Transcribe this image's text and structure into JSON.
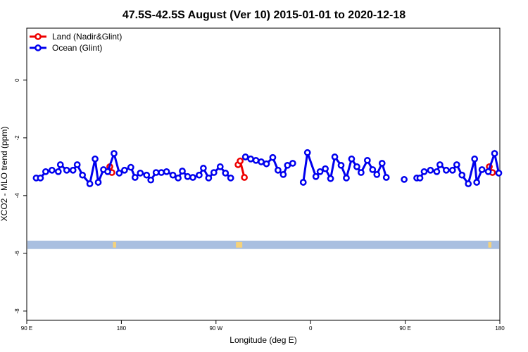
{
  "chart_data": {
    "type": "line",
    "title": "47.5S-42.5S August (Ver 10)   2015-01-01 to 2020-12-18",
    "x_label": "Longitude (deg E)",
    "y_label": "XCO2 - MLO trend (ppm)",
    "xlim": [
      90,
      540
    ],
    "ylim": [
      -8.32,
      1.8
    ],
    "xticks": [
      {
        "value": 90,
        "label": "90 E"
      },
      180,
      {
        "value": 270,
        "label": "90 W"
      },
      {
        "value": 360,
        "label": "0"
      },
      {
        "value": 450,
        "label": "90 E"
      },
      {
        "value": 540,
        "label": "180"
      }
    ],
    "yticks": [
      -8,
      -6,
      -4,
      -2,
      0
    ],
    "legend": "top-left",
    "band": {
      "ylim": [
        -5.85,
        -5.56
      ],
      "color": "#a9bfe0",
      "highlight_color": "#f5d27a",
      "highlights": [
        [
          172,
          175
        ],
        [
          289,
          295
        ],
        [
          529,
          532
        ]
      ]
    },
    "series": [
      {
        "name": "Land (Nadir&Glint)",
        "color": "#ee0000",
        "x": [
          169,
          171,
          null,
          291,
          293,
          297,
          null,
          530,
          533
        ],
        "values": [
          -3.0,
          -3.2,
          null,
          -2.93,
          -2.8,
          -3.37,
          null,
          -3.0,
          -3.2
        ]
      },
      {
        "name": "Ocean (Glint)",
        "color": "#0000ee",
        "x": [
          99,
          103,
          108,
          114,
          120,
          122,
          128,
          134,
          138,
          143,
          150,
          155,
          158,
          163,
          167,
          173,
          178,
          183,
          189,
          193,
          198,
          204,
          208,
          213,
          218,
          223,
          229,
          234,
          238,
          243,
          248,
          254,
          258,
          263,
          268,
          274,
          279,
          284,
          null,
          298,
          303,
          308,
          313,
          318,
          324,
          329,
          334,
          338,
          343,
          null,
          353,
          357,
          365,
          369,
          374,
          379,
          383,
          389,
          394,
          399,
          404,
          408,
          414,
          419,
          423,
          428,
          432,
          null,
          449,
          null,
          461,
          464,
          468,
          474,
          480,
          483,
          489,
          495,
          499,
          504,
          510,
          516,
          518,
          523,
          529,
          535,
          539
        ],
        "values": [
          -3.39,
          -3.39,
          -3.17,
          -3.12,
          -3.17,
          -2.93,
          -3.12,
          -3.12,
          -2.93,
          -3.29,
          -3.59,
          -2.73,
          -3.54,
          -3.1,
          -3.17,
          -2.54,
          -3.22,
          -3.12,
          -3.02,
          -3.37,
          -3.22,
          -3.29,
          -3.46,
          -3.2,
          -3.2,
          -3.17,
          -3.29,
          -3.39,
          -3.15,
          -3.34,
          -3.37,
          -3.29,
          -3.05,
          -3.39,
          -3.2,
          -3.0,
          -3.22,
          -3.39,
          null,
          -2.66,
          -2.73,
          -2.78,
          -2.83,
          -2.9,
          -2.68,
          -3.12,
          -3.27,
          -2.95,
          -2.88,
          null,
          -3.54,
          -2.51,
          -3.34,
          -3.17,
          -3.07,
          -3.41,
          -2.66,
          -2.95,
          -3.39,
          -2.73,
          -3.0,
          -3.2,
          -2.78,
          -3.1,
          -3.27,
          -2.88,
          -3.37,
          null,
          -3.44,
          null,
          -3.39,
          -3.39,
          -3.17,
          -3.12,
          -3.17,
          -2.93,
          -3.12,
          -3.12,
          -2.93,
          -3.29,
          -3.59,
          -2.73,
          -3.54,
          -3.1,
          -3.17,
          -2.54,
          -3.22
        ]
      }
    ]
  }
}
